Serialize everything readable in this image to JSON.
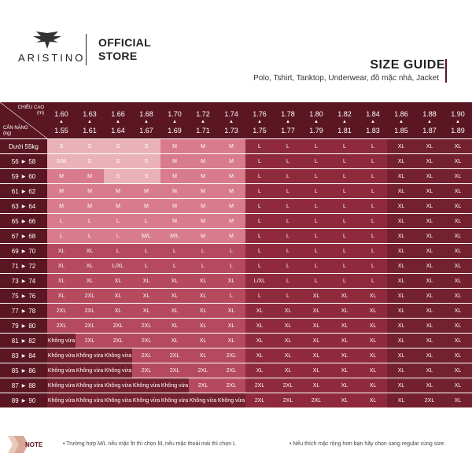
{
  "header": {
    "brand": "ARISTINO",
    "store": [
      "OFFICIAL",
      "STORE"
    ],
    "guide_title": "SIZE GUIDE",
    "guide_subtitle": "Polo, Tshirt, Tanktop, Underwear, đồ mặc nhà, Jacket"
  },
  "table": {
    "corner_height_label": [
      "CHIỀU CAO",
      "(m)"
    ],
    "corner_weight_label": [
      "CÂN NẶNG",
      "(kg)"
    ],
    "heights": [
      [
        "1.60",
        "1.55"
      ],
      [
        "1.63",
        "1.61"
      ],
      [
        "1.66",
        "1.64"
      ],
      [
        "1.68",
        "1.67"
      ],
      [
        "1.70",
        "1.69"
      ],
      [
        "1.72",
        "1.71"
      ],
      [
        "1.74",
        "1.73"
      ],
      [
        "1.76",
        "1.75"
      ],
      [
        "1.78",
        "1.77"
      ],
      [
        "1.80",
        "1.79"
      ],
      [
        "1.82",
        "1.81"
      ],
      [
        "1.84",
        "1.83"
      ],
      [
        "1.86",
        "1.85"
      ],
      [
        "1.88",
        "1.87"
      ],
      [
        "1.90",
        "1.89"
      ]
    ],
    "weights": [
      [
        "Dưới 55kg"
      ],
      [
        "56",
        "58"
      ],
      [
        "59",
        "60"
      ],
      [
        "61",
        "62"
      ],
      [
        "63",
        "64"
      ],
      [
        "65",
        "66"
      ],
      [
        "67",
        "68"
      ],
      [
        "69",
        "70"
      ],
      [
        "71",
        "72"
      ],
      [
        "73",
        "74"
      ],
      [
        "75",
        "76"
      ],
      [
        "77",
        "78"
      ],
      [
        "79",
        "80"
      ],
      [
        "81",
        "82"
      ],
      [
        "83",
        "84"
      ],
      [
        "85",
        "86"
      ],
      [
        "87",
        "88"
      ],
      [
        "89",
        "90"
      ]
    ],
    "rows": [
      [
        "S",
        "S",
        "S",
        "S",
        "M",
        "M",
        "M",
        "L",
        "L",
        "L",
        "L",
        "L",
        "XL",
        "XL",
        "XL"
      ],
      [
        "S/M",
        "S",
        "S",
        "S",
        "M",
        "M",
        "M",
        "L",
        "L",
        "L",
        "L",
        "L",
        "XL",
        "XL",
        "XL"
      ],
      [
        "M",
        "M",
        "S",
        "S",
        "M",
        "M",
        "M",
        "L",
        "L",
        "L",
        "L",
        "L",
        "XL",
        "XL",
        "XL"
      ],
      [
        "M",
        "M",
        "M",
        "M",
        "M",
        "M",
        "M",
        "L",
        "L",
        "L",
        "L",
        "L",
        "XL",
        "XL",
        "XL"
      ],
      [
        "M",
        "M",
        "M",
        "M",
        "M",
        "M",
        "M",
        "L",
        "L",
        "L",
        "L",
        "L",
        "XL",
        "XL",
        "XL"
      ],
      [
        "L",
        "L",
        "L",
        "L",
        "M",
        "M",
        "M",
        "L",
        "L",
        "L",
        "L",
        "L",
        "XL",
        "XL",
        "XL"
      ],
      [
        "L",
        "L",
        "L",
        "M/L",
        "M/L",
        "M",
        "M",
        "L",
        "L",
        "L",
        "L",
        "L",
        "XL",
        "XL",
        "XL"
      ],
      [
        "XL",
        "XL",
        "L",
        "L",
        "L",
        "L",
        "L",
        "L",
        "L",
        "L",
        "L",
        "L",
        "XL",
        "XL",
        "XL"
      ],
      [
        "XL",
        "XL",
        "L/XL",
        "L",
        "L",
        "L",
        "L",
        "L",
        "L",
        "L",
        "L",
        "L",
        "XL",
        "XL",
        "XL"
      ],
      [
        "XL",
        "XL",
        "XL",
        "XL",
        "XL",
        "XL",
        "XL",
        "L/XL",
        "L",
        "L",
        "L",
        "L",
        "XL",
        "XL",
        "XL"
      ],
      [
        "XL",
        "2XL",
        "XL",
        "XL",
        "XL",
        "XL",
        "L",
        "L",
        "L",
        "XL",
        "XL",
        "XL",
        "XL",
        "XL",
        "XL"
      ],
      [
        "2XL",
        "2XL",
        "XL",
        "XL",
        "XL",
        "XL",
        "XL",
        "XL",
        "XL",
        "XL",
        "XL",
        "XL",
        "XL",
        "XL",
        "XL"
      ],
      [
        "2XL",
        "2XL",
        "2XL",
        "2XL",
        "XL",
        "XL",
        "XL",
        "XL",
        "XL",
        "XL",
        "XL",
        "XL",
        "XL",
        "XL",
        "XL"
      ],
      [
        "Không vừa",
        "2XL",
        "2XL",
        "2XL",
        "XL",
        "XL",
        "XL",
        "XL",
        "XL",
        "XL",
        "XL",
        "XL",
        "XL",
        "XL",
        "XL"
      ],
      [
        "Không vừa",
        "Không vừa",
        "Không vừa",
        "2XL",
        "2XL",
        "XL",
        "2XL",
        "XL",
        "XL",
        "XL",
        "XL",
        "XL",
        "XL",
        "XL",
        "XL"
      ],
      [
        "Không vừa",
        "Không vừa",
        "Không vừa",
        "2XL",
        "2XL",
        "2XL",
        "2XL",
        "XL",
        "XL",
        "XL",
        "XL",
        "XL",
        "XL",
        "XL",
        "XL"
      ],
      [
        "Không vừa",
        "Không vừa",
        "Không vừa",
        "Không vừa",
        "Không vừa",
        "2XL",
        "2XL",
        "2XL",
        "2XL",
        "XL",
        "XL",
        "XL",
        "XL",
        "XL",
        "XL"
      ],
      [
        "Không vừa",
        "Không vừa",
        "Không vừa",
        "Không vừa",
        "Không vừa",
        "Không vừa",
        "Không vừa",
        "2XL",
        "2XL",
        "2XL",
        "XL",
        "XL",
        "XL",
        "2XL",
        "XL"
      ]
    ],
    "colors": {
      "pale": "#eab2b8",
      "light": "#d87b8c",
      "mid": "#b54a5f",
      "dark": "#8e2a3c",
      "darker": "#74212f",
      "header": "#5a1622"
    }
  },
  "note": {
    "label": "NOTE",
    "left": "• Trường hợp M/L nếu mặc fit thì chọn M, nếu mặc thoải mái thì chọn L",
    "right": "• Nếu thích mặc rộng hơn bạn hãy chọn sang regular cùng size."
  }
}
